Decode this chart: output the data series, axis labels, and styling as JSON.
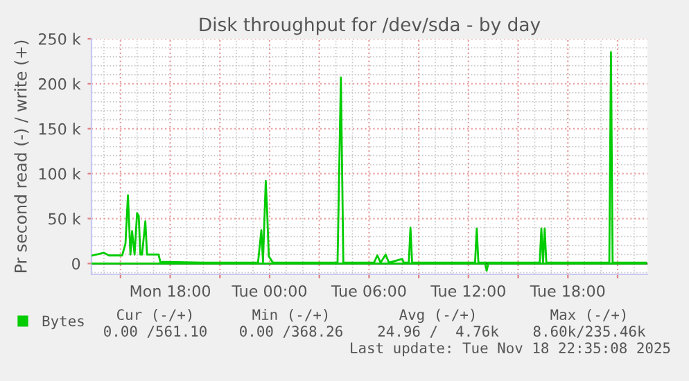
{
  "chart_data": {
    "type": "line",
    "title": "Disk throughput for /dev/sda - by day",
    "ylabel": "Pr second read (-) / write (+)",
    "series": [
      {
        "name": "Bytes",
        "color": "#00cc00",
        "x": [
          "2025-11-17T13:18",
          "2025-11-17T14:00",
          "2025-11-17T14:18",
          "2025-11-17T15:06",
          "2025-11-17T15:18",
          "2025-11-17T15:27",
          "2025-11-17T15:36",
          "2025-11-17T15:42",
          "2025-11-17T15:51",
          "2025-11-17T16:00",
          "2025-11-17T16:06",
          "2025-11-17T16:12",
          "2025-11-17T16:18",
          "2025-11-17T16:30",
          "2025-11-17T16:36",
          "2025-11-17T17:18",
          "2025-11-17T17:24",
          "2025-11-17T20:00",
          "2025-11-17T23:18",
          "2025-11-17T23:30",
          "2025-11-17T23:36",
          "2025-11-17T23:46",
          "2025-11-17T23:51",
          "2025-11-17T23:57",
          "2025-11-18T00:12",
          "2025-11-18T04:06",
          "2025-11-18T04:18",
          "2025-11-18T04:27",
          "2025-11-18T06:18",
          "2025-11-18T06:30",
          "2025-11-18T06:42",
          "2025-11-18T07:00",
          "2025-11-18T07:12",
          "2025-11-18T08:00",
          "2025-11-18T08:06",
          "2025-11-18T08:24",
          "2025-11-18T08:30",
          "2025-11-18T08:36",
          "2025-11-18T12:24",
          "2025-11-18T12:30",
          "2025-11-18T12:36",
          "2025-11-18T16:18",
          "2025-11-18T16:24",
          "2025-11-18T16:30",
          "2025-11-18T16:36",
          "2025-11-18T16:42",
          "2025-11-18T20:30",
          "2025-11-18T20:36",
          "2025-11-18T20:42",
          "2025-11-18T22:42"
        ],
        "values": [
          9000,
          12000,
          9000,
          9000,
          22000,
          76000,
          10000,
          36000,
          10000,
          56000,
          53000,
          10000,
          10000,
          47000,
          10000,
          10000,
          2000,
          1000,
          1000,
          37000,
          2000,
          92000,
          58000,
          8000,
          1000,
          1000,
          207000,
          1000,
          1000,
          9000,
          1000,
          10000,
          1000,
          5000,
          1000,
          1000,
          40000,
          1000,
          1000,
          39000,
          1000,
          1000,
          39000,
          1000,
          39000,
          1000,
          1000,
          235000,
          1000,
          1000
        ]
      },
      {
        "color": "#00cc00",
        "x": [
          "2025-11-17T13:18",
          "2025-11-18T13:00",
          "2025-11-18T13:06",
          "2025-11-18T13:12",
          "2025-11-18T22:42"
        ],
        "values": [
          0,
          0,
          -8000,
          0,
          0
        ]
      }
    ],
    "xlim": [
      "2025-11-17T13:15",
      "2025-11-18T22:48"
    ],
    "ylim": [
      -12000,
      250000
    ],
    "xticks": [
      {
        "value": "2025-11-17T15:00",
        "label": null
      },
      {
        "value": "2025-11-17T18:00",
        "label": "Mon 18:00"
      },
      {
        "value": "2025-11-17T21:00",
        "label": null
      },
      {
        "value": "2025-11-18T00:00",
        "label": "Tue 00:00"
      },
      {
        "value": "2025-11-18T03:00",
        "label": null
      },
      {
        "value": "2025-11-18T06:00",
        "label": "Tue 06:00"
      },
      {
        "value": "2025-11-18T09:00",
        "label": null
      },
      {
        "value": "2025-11-18T12:00",
        "label": "Tue 12:00"
      },
      {
        "value": "2025-11-18T15:00",
        "label": null
      },
      {
        "value": "2025-11-18T18:00",
        "label": "Tue 18:00"
      },
      {
        "value": "2025-11-18T21:00",
        "label": null
      }
    ],
    "yticks": [
      0,
      {
        "value": 50000,
        "label": "50 k"
      },
      {
        "value": 100000,
        "label": "100 k"
      },
      {
        "value": 150000,
        "label": "150 k"
      },
      {
        "value": 200000,
        "label": "200 k"
      },
      {
        "value": 250000,
        "label": "250 k"
      }
    ],
    "ref_lines": [
      {
        "axis": "y",
        "value": 0,
        "color": "#000000"
      }
    ],
    "grid": true,
    "legend": "bottom left",
    "annotations": [
      "Cur (-/+)",
      "Min (-/+)",
      "Avg (-/+)",
      "Max (-/+)",
      "0.00 /561.10",
      "0.00 /368.26",
      "24.96 /  4.76k",
      "8.60k/235.46k",
      "Last update: Tue Nov 18 22:35:08 2025"
    ]
  }
}
